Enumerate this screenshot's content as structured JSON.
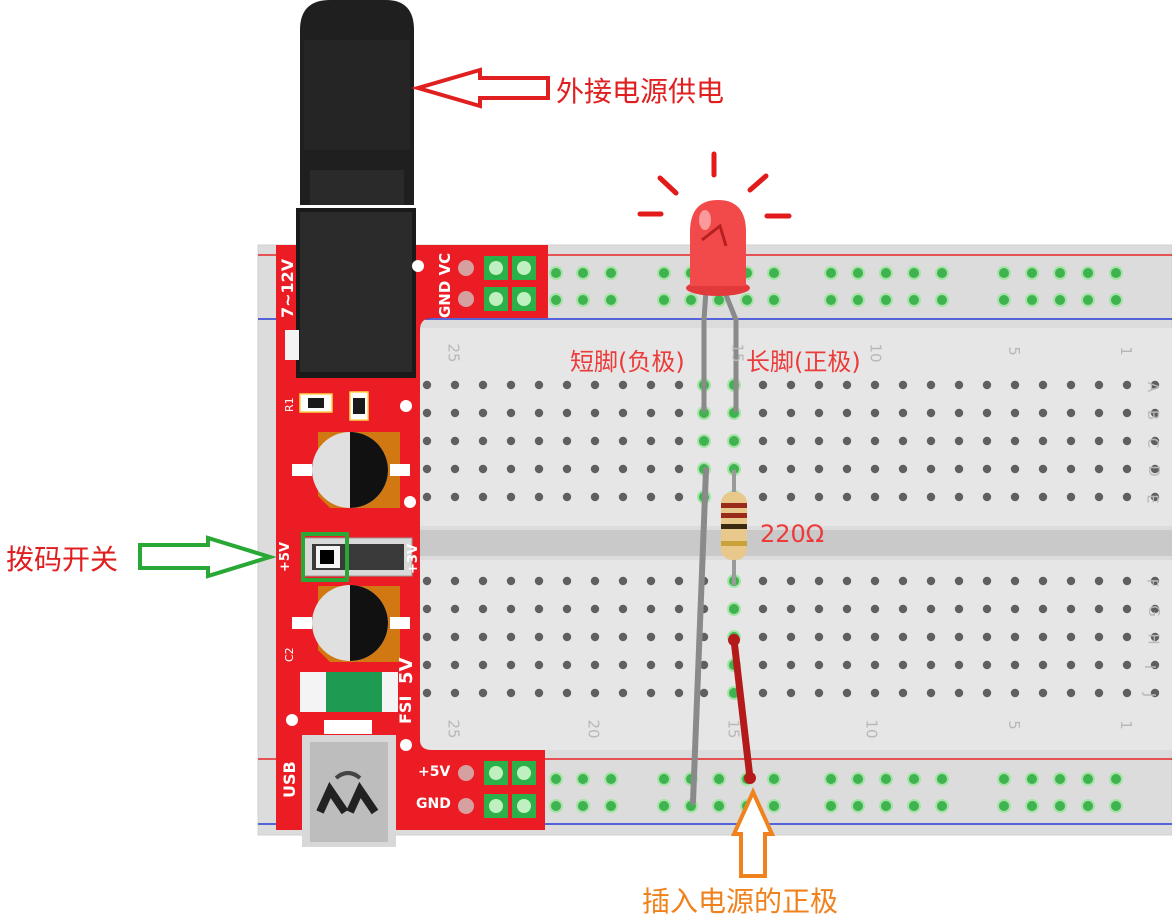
{
  "annotations": {
    "external_power": "外接电源供电",
    "dip_switch": "拨码开关",
    "plug_positive": "插入电源的正极",
    "short_leg": "短脚(负极)",
    "long_leg": "长脚(正极)",
    "resistor_value": "220Ω"
  },
  "power_module": {
    "input_voltage": "7~12V",
    "rail_labels_top": "GND VC",
    "rail_label_5v": "+5V",
    "rail_label_gnd": "GND",
    "switch_left": "+5V",
    "switch_right": "+3V",
    "resistor_ref": "R1",
    "cap_ref": "C2",
    "output_label": "5V",
    "fuse_label": "FSI",
    "usb_label": "USB"
  },
  "breadboard": {
    "column_numbers_top": [
      "25",
      "15",
      "10",
      "5",
      "1"
    ],
    "column_numbers_bottom": [
      "25",
      "20",
      "15",
      "10",
      "5",
      "1"
    ],
    "row_letters_top": [
      "A",
      "B",
      "C",
      "D",
      "E"
    ],
    "row_letters_bottom": [
      "F",
      "G",
      "H",
      "I",
      "J"
    ]
  },
  "colors": {
    "annotation_red": "#e02020",
    "annotation_green": "#2aa836",
    "annotation_orange": "#f0821e",
    "pcb_red": "#ec1c24",
    "rail_red": "#e8242a",
    "rail_blue": "#2a3bd6",
    "led_red": "#f24a4a"
  }
}
